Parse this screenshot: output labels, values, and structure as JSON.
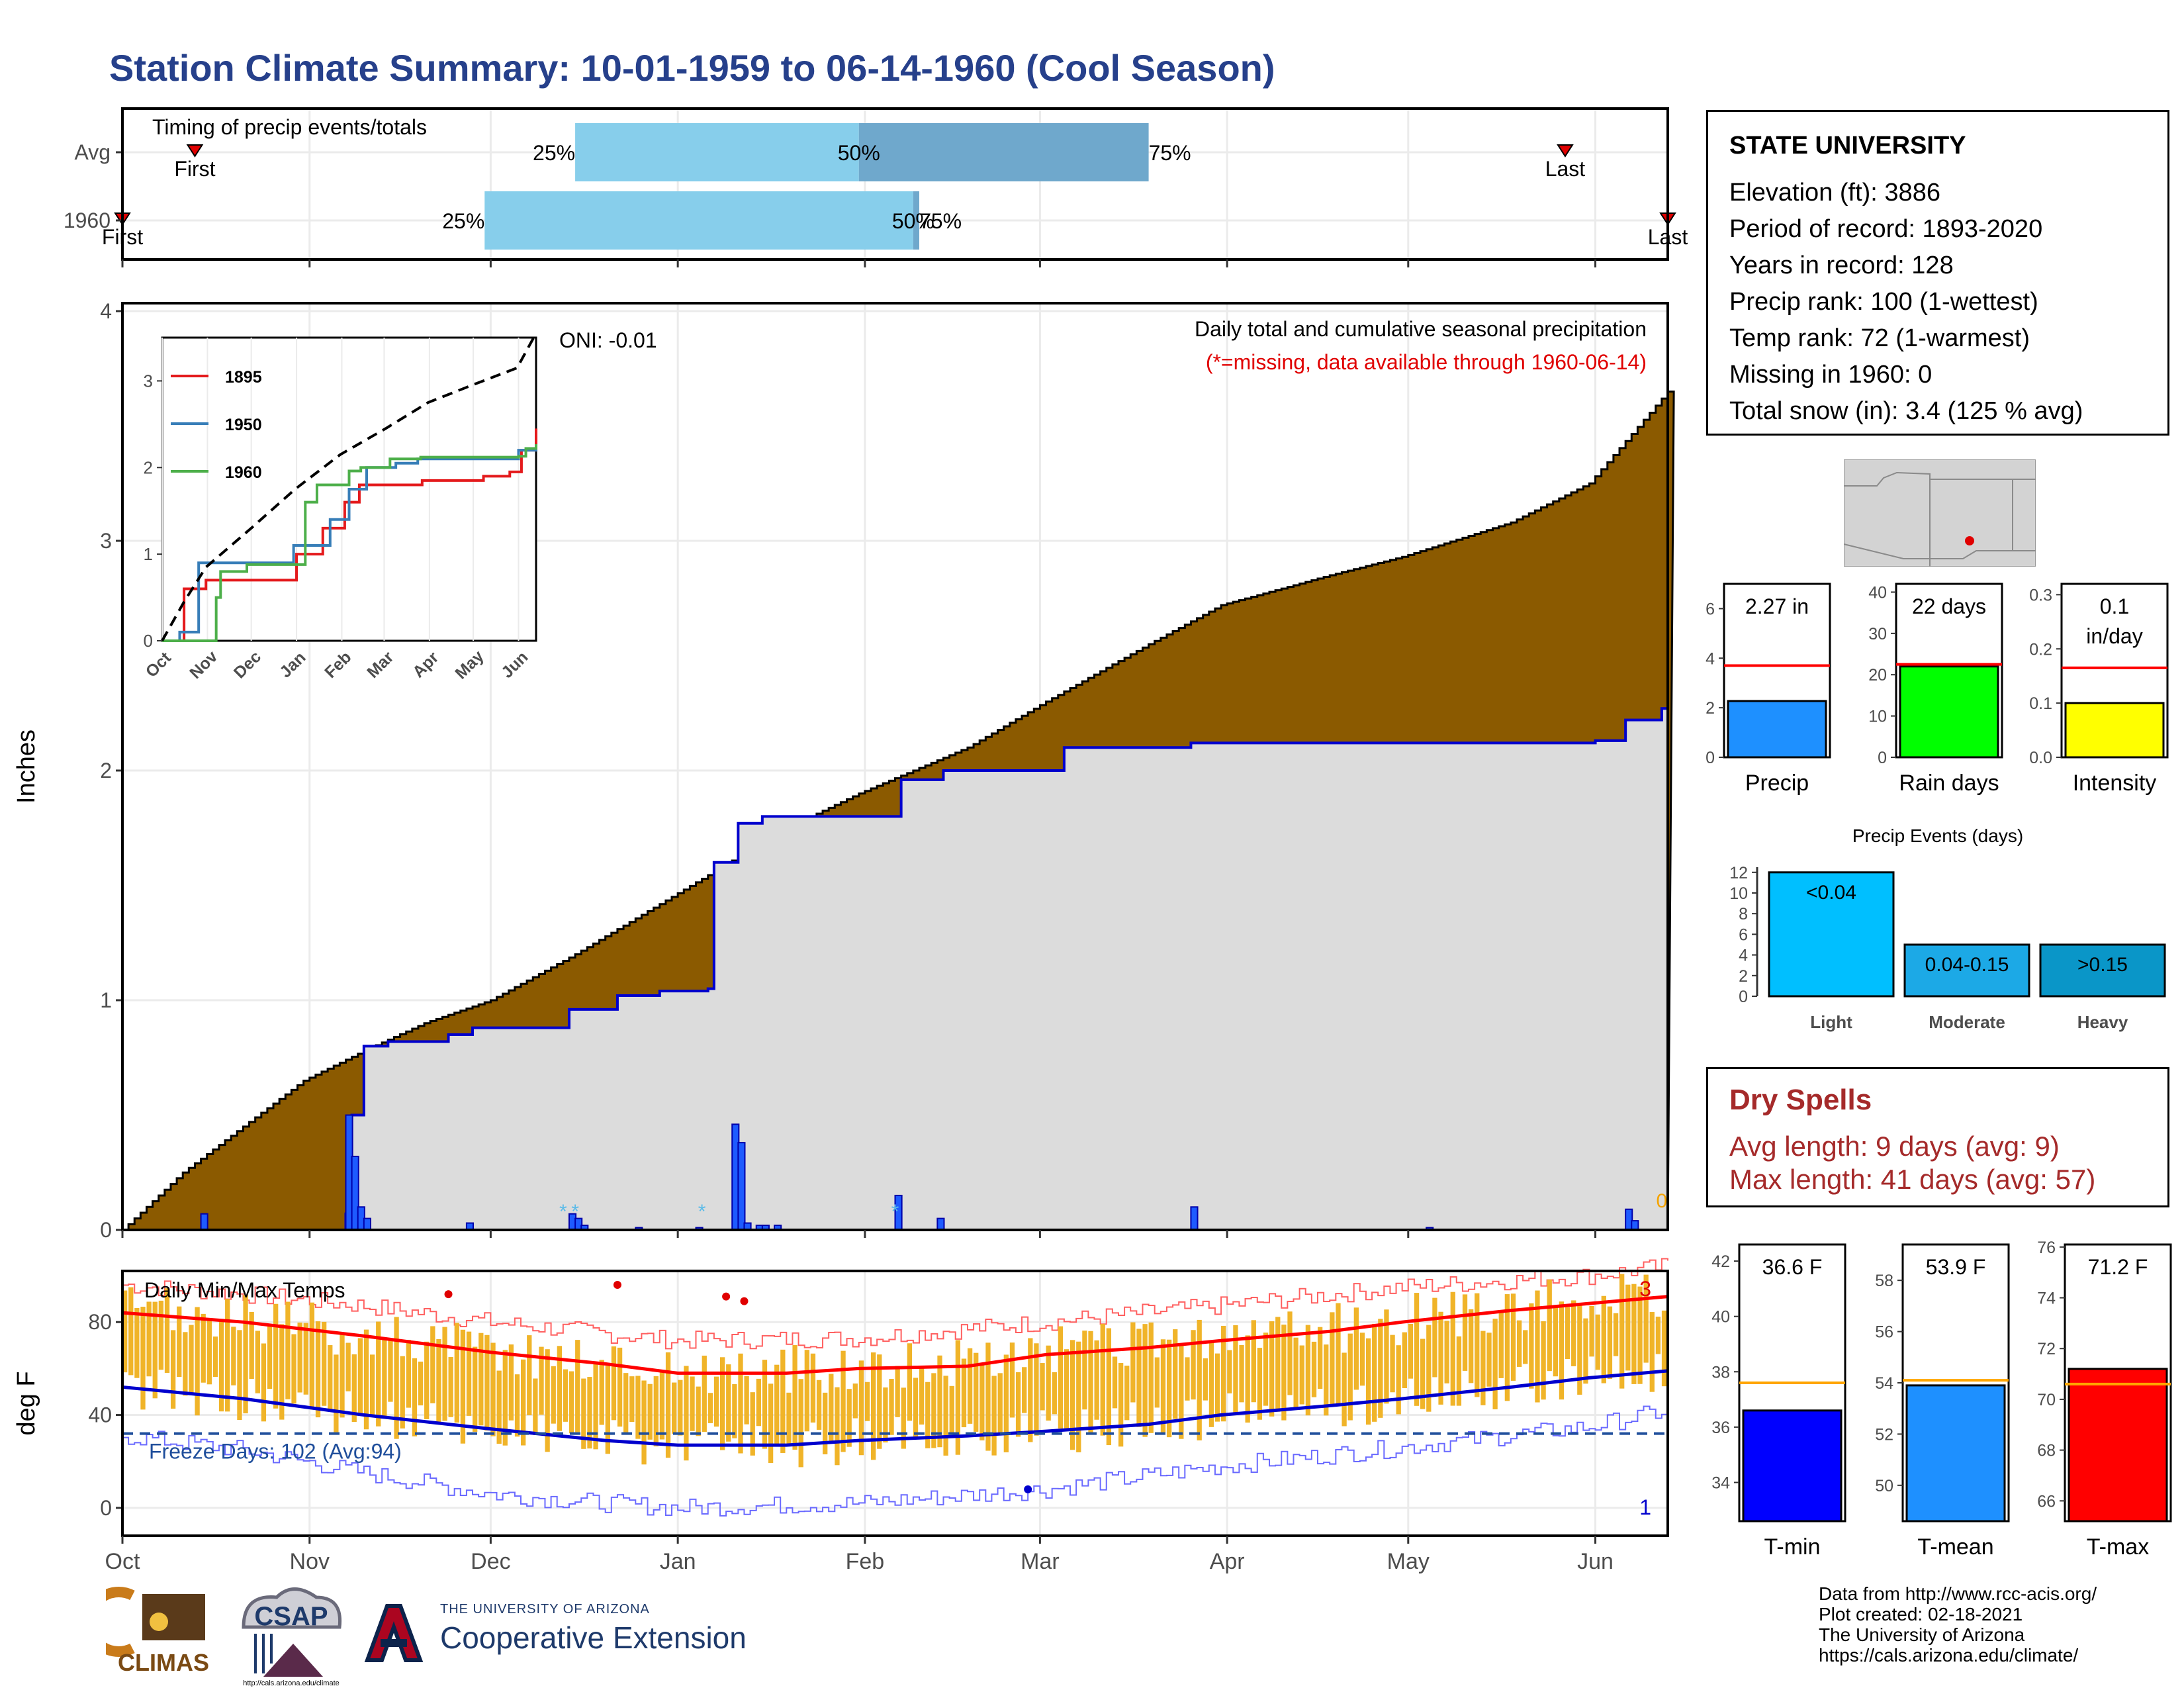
{
  "title": "Station Climate Summary: 10-01-1959 to 06-14-1960 (Cool Season)",
  "colors": {
    "title": "#26408b",
    "cumulative_fill": "#8b5a00",
    "current_fill": "#dcdcdc",
    "current_line": "#0000cd",
    "daily_bar": "#1e5bff",
    "temp_bar": "#f0b429",
    "tmax_line": "#ff0000",
    "tmin_line": "#0000cd",
    "freeze_line": "#1f4e9b",
    "timing_light": "#87ceeb",
    "timing_dark": "#6fa8cc"
  },
  "station": {
    "name": "STATE UNIVERSITY",
    "lines": [
      "Elevation (ft): 3886",
      "Period of record: 1893-2020",
      "Years in record: 128",
      "Precip rank: 100 (1-wettest)",
      "Temp rank: 72 (1-warmest)",
      "Missing in 1960: 0",
      "Total snow (in): 3.4 (125 % avg)"
    ]
  },
  "dry_spells": {
    "title": "Dry Spells",
    "avg": "Avg length: 9 days (avg: 9)",
    "max": "Max length: 41 days (avg: 57)"
  },
  "footer": {
    "lines": [
      "Data from http://www.rcc-acis.org/",
      "Plot created: 02-18-2021",
      "The University of Arizona",
      "https://cals.arizona.edu/climate/"
    ],
    "ext_small": "THE UNIVERSITY OF ARIZONA",
    "ext_big": "Cooperative Extension",
    "climas": "CLIMAS",
    "csap": "CSAP",
    "csap_url": "http://cals.arizona.edu/climate"
  },
  "months": [
    "Oct",
    "Nov",
    "Dec",
    "Jan",
    "Feb",
    "Mar",
    "Apr",
    "May",
    "Jun"
  ],
  "chart_data": [
    {
      "type": "bar",
      "title": "Timing of precip events/totals",
      "categories": [
        "Avg",
        "1960"
      ],
      "series": [
        {
          "name": "Avg",
          "first": "Oct 13",
          "p25": "Dec 15",
          "p50": "Jan 31",
          "p75": "Mar 19",
          "last": "May 27",
          "labels": [
            "First",
            "25%",
            "50%",
            "75%",
            "Last"
          ]
        },
        {
          "name": "1960",
          "first": "Oct 1",
          "p25": "Nov 30",
          "p50": "Feb 9",
          "p75": "Feb 10",
          "last": "Jun 13",
          "labels": [
            "First",
            "25%",
            "50%",
            "75%",
            "Last"
          ]
        }
      ]
    },
    {
      "type": "area",
      "title": "Daily total and cumulative seasonal precipitation",
      "subtitle": "(*=missing, data available through 1960-06-14)",
      "ylabel": "Inches",
      "ylim": [
        0,
        4
      ],
      "oni": "ONI: -0.01",
      "zero_label": "0",
      "yticks": [
        "0",
        "1",
        "2",
        "3",
        "4"
      ],
      "avg_cumulative": {
        "x_day": [
          0,
          10,
          20,
          30,
          40,
          50,
          61,
          75,
          91,
          110,
          122,
          140,
          153,
          170,
          182,
          200,
          212,
          230,
          243,
          256
        ],
        "y": [
          0,
          0.25,
          0.45,
          0.65,
          0.78,
          0.9,
          1.0,
          1.2,
          1.45,
          1.75,
          1.9,
          2.1,
          2.3,
          2.55,
          2.72,
          2.85,
          2.93,
          3.08,
          3.25,
          3.65
        ]
      },
      "cumulative_1960": {
        "x_day": [
          0,
          37,
          38,
          40,
          44,
          54,
          58,
          72,
          74,
          82,
          89,
          97,
          98,
          102,
          106,
          128,
          129,
          136,
          148,
          155,
          156,
          176,
          177,
          180,
          179,
          244,
          249,
          255,
          256
        ],
        "y": [
          0,
          0.07,
          0.5,
          0.8,
          0.82,
          0.85,
          0.88,
          0.88,
          0.96,
          1.02,
          1.04,
          1.05,
          1.6,
          1.77,
          1.8,
          1.8,
          1.96,
          2.0,
          2.0,
          2.0,
          2.1,
          2.1,
          2.12,
          2.12,
          2.12,
          2.13,
          2.22,
          2.27,
          2.27
        ]
      },
      "daily_1960": {
        "x_day": [
          13,
          37,
          38,
          39,
          40,
          57,
          74,
          75,
          76,
          85,
          95,
          101,
          102,
          103,
          105,
          106,
          108,
          128,
          135,
          177,
          216,
          249,
          250
        ],
        "y": [
          0.07,
          0.5,
          0.32,
          0.1,
          0.05,
          0.03,
          0.07,
          0.05,
          0.02,
          0.01,
          0.01,
          0.46,
          0.38,
          0.03,
          0.02,
          0.02,
          0.02,
          0.15,
          0.05,
          0.1,
          0.01,
          0.09,
          0.04
        ]
      },
      "snow_marks_day": [
        73,
        75,
        96,
        128
      ],
      "inset": {
        "type": "line",
        "xticks": [
          "Oct",
          "Nov",
          "Dec",
          "Jan",
          "Feb",
          "Mar",
          "Apr",
          "May",
          "Jun"
        ],
        "yticks": [
          "0",
          "1",
          "2",
          "3"
        ],
        "ylim": [
          0,
          3.5
        ],
        "series": [
          {
            "name": "1895",
            "color": "#e41a1c",
            "x_day": [
              0,
              15,
              30,
              80,
              92,
              110,
              125,
              135,
              150,
              178,
              220,
              238,
              246,
              256
            ],
            "y": [
              0,
              0.6,
              0.7,
              0.7,
              1.0,
              1.3,
              1.6,
              1.8,
              1.8,
              1.85,
              1.9,
              1.95,
              2.2,
              2.45
            ]
          },
          {
            "name": "1950",
            "color": "#377eb8",
            "x_day": [
              0,
              12,
              25,
              60,
              90,
              115,
              128,
              140,
              152,
              160,
              175,
              230,
              244,
              256
            ],
            "y": [
              0,
              0.1,
              0.9,
              0.9,
              1.1,
              1.4,
              1.75,
              2.0,
              2.0,
              2.05,
              2.1,
              2.1,
              2.2,
              2.27
            ]
          },
          {
            "name": "1960",
            "color": "#4daf4a",
            "x_day": [
              0,
              37,
              40,
              58,
              98,
              106,
              128,
              136,
              156,
              177,
              244,
              249,
              256
            ],
            "y": [
              0,
              0.5,
              0.8,
              0.88,
              1.6,
              1.8,
              1.96,
              2.0,
              2.1,
              2.12,
              2.13,
              2.22,
              2.27
            ]
          }
        ],
        "avg": {
          "x_day": [
            0,
            15,
            30,
            61,
            91,
            122,
            153,
            182,
            212,
            243,
            256
          ],
          "y": [
            0,
            0.45,
            0.85,
            1.3,
            1.75,
            2.15,
            2.45,
            2.75,
            2.95,
            3.15,
            3.55
          ]
        }
      }
    },
    {
      "type": "bar",
      "title": "Precip",
      "value_label": "2.27 in",
      "value": 2.27,
      "avg": 3.7,
      "ylim": [
        0,
        7
      ],
      "yticks": [
        "0",
        "2",
        "4",
        "6"
      ]
    },
    {
      "type": "bar",
      "title": "Rain days",
      "value_label": "22 days",
      "value": 22,
      "avg": 22.5,
      "ylim": [
        0,
        42
      ],
      "yticks": [
        "0",
        "10",
        "20",
        "30",
        "40"
      ]
    },
    {
      "type": "bar",
      "title": "Intensity",
      "value_label": "0.1",
      "value_label_2": "in/day",
      "value": 0.1,
      "avg": 0.165,
      "ylim": [
        0,
        0.32
      ],
      "yticks": [
        "0.0",
        "0.1",
        "0.2",
        "0.3"
      ]
    },
    {
      "type": "bar",
      "title": "Precip Events (days)",
      "categories": [
        "Light",
        "Moderate",
        "Heavy"
      ],
      "bar_labels": [
        "<0.04",
        "0.04-0.15",
        ">0.15"
      ],
      "values": [
        12,
        5,
        5
      ],
      "ylim": [
        0,
        12.5
      ],
      "yticks": [
        "0",
        "2",
        "4",
        "6",
        "8",
        "10",
        "12"
      ]
    },
    {
      "type": "bar",
      "title": "Daily Min/Max Temps",
      "ylabel": "deg F",
      "ylim": [
        -12,
        102
      ],
      "yticks": [
        "0",
        "40",
        "80"
      ],
      "freeze_label": "Freeze Days: 102 (Avg:94)",
      "freeze_level": 32,
      "record_high_count": "3",
      "record_low_count": "1",
      "avg_tmax": {
        "x_day": [
          0,
          20,
          40,
          61,
          80,
          92,
          110,
          122,
          140,
          153,
          170,
          182,
          200,
          212,
          230,
          243,
          256
        ],
        "y": [
          84,
          80,
          74,
          67,
          62,
          58,
          58,
          60,
          61,
          66,
          69,
          72,
          76,
          80,
          85,
          88,
          91
        ]
      },
      "avg_tmin": {
        "x_day": [
          0,
          20,
          40,
          61,
          80,
          92,
          110,
          122,
          140,
          153,
          170,
          182,
          200,
          212,
          230,
          243,
          256
        ],
        "y": [
          52,
          47,
          40,
          34,
          29,
          27,
          27,
          29,
          31,
          33,
          36,
          40,
          44,
          47,
          52,
          56,
          59
        ]
      },
      "rec_high": {
        "x_day": [
          0,
          20,
          40,
          61,
          80,
          92,
          122,
          153,
          182,
          212,
          243,
          256
        ],
        "y": [
          96,
          92,
          87,
          80,
          75,
          72,
          73,
          80,
          87,
          95,
          100,
          104
        ]
      },
      "rec_low": {
        "x_day": [
          0,
          20,
          40,
          61,
          80,
          92,
          122,
          153,
          182,
          212,
          243,
          256
        ],
        "y": [
          31,
          25,
          15,
          6,
          2,
          0,
          2,
          8,
          18,
          26,
          35,
          42
        ]
      }
    },
    {
      "type": "bar",
      "title": "T-min",
      "value_label": "36.6 F",
      "value": 36.6,
      "avg": 37.6,
      "ylim": [
        32.6,
        42.6
      ],
      "yticks": [
        "34",
        "36",
        "38",
        "40",
        "42"
      ]
    },
    {
      "type": "bar",
      "title": "T-mean",
      "value_label": "53.9 F",
      "value": 53.9,
      "avg": 54.1,
      "ylim": [
        48.6,
        59.4
      ],
      "yticks": [
        "50",
        "52",
        "54",
        "56",
        "58"
      ]
    },
    {
      "type": "bar",
      "title": "T-max",
      "value_label": "71.2 F",
      "value": 71.2,
      "avg": 70.6,
      "ylim": [
        65.2,
        76.1
      ],
      "yticks": [
        "66",
        "68",
        "70",
        "72",
        "74",
        "76"
      ]
    }
  ]
}
